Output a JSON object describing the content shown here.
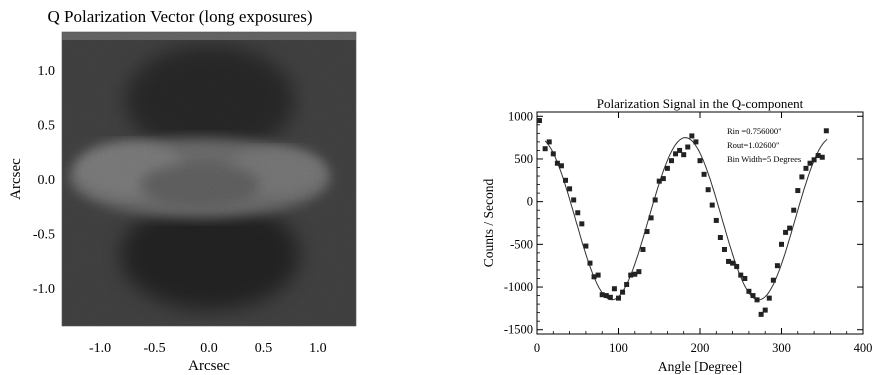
{
  "chart_data": [
    {
      "type": "heatmap",
      "title": "Q Polarization Vector (long exposures)",
      "xlabel": "Arcsec",
      "ylabel": "Arcsec",
      "xlim": [
        -1.35,
        1.35
      ],
      "ylim": [
        -1.35,
        1.35
      ],
      "x_ticks": [
        -1.0,
        -0.5,
        0.0,
        0.5,
        1.0
      ],
      "x_tick_labels": [
        "-1.0",
        "-0.5",
        "0.0",
        "0.5",
        "1.0"
      ],
      "y_ticks": [
        1.0,
        0.5,
        0.0,
        -0.5,
        -1.0
      ],
      "y_tick_labels": [
        "1.0",
        "0.5",
        "0.0",
        "-0.5",
        "-1.0"
      ],
      "colormap": "grayscale",
      "description_features": {
        "bright_band_center_y": 0.05,
        "bright_band_extent_x": [
          -0.95,
          0.95
        ],
        "dark_lobes_y": [
          0.55,
          -0.55
        ]
      }
    },
    {
      "type": "scatter",
      "title": "Polarization Signal in the Q-component",
      "xlabel": "Angle [Degree]",
      "ylabel": "Counts / Second",
      "xlim": [
        0,
        400
      ],
      "ylim": [
        -1550,
        1050
      ],
      "x_ticks": [
        0,
        100,
        200,
        300,
        400
      ],
      "x_tick_labels": [
        "0",
        "100",
        "200",
        "300",
        "400"
      ],
      "y_ticks": [
        1000,
        500,
        0,
        -500,
        -1000,
        -1500
      ],
      "y_tick_labels": [
        "1000",
        "500",
        "0",
        "-500",
        "-1000",
        "-1500"
      ],
      "annotations": [
        "Rin =0.756000\"",
        "Rout=1.02600\"",
        "Bin Width=5 Degrees"
      ],
      "fit_line": {
        "type": "sinusoid",
        "offset": -200,
        "amplitude": 950,
        "period_deg": 180,
        "peak_deg": 182
      },
      "x": [
        3,
        10,
        15,
        20,
        25,
        30,
        35,
        40,
        45,
        50,
        55,
        60,
        65,
        70,
        75,
        80,
        85,
        90,
        95,
        100,
        105,
        110,
        115,
        120,
        125,
        130,
        135,
        140,
        145,
        150,
        155,
        160,
        165,
        170,
        175,
        180,
        185,
        190,
        195,
        200,
        205,
        210,
        215,
        220,
        225,
        230,
        235,
        240,
        245,
        250,
        255,
        260,
        265,
        270,
        275,
        280,
        285,
        290,
        295,
        300,
        305,
        310,
        315,
        320,
        325,
        330,
        335,
        340,
        345,
        350,
        355
      ],
      "y": [
        950,
        620,
        700,
        560,
        450,
        420,
        250,
        150,
        20,
        -130,
        -260,
        -520,
        -720,
        -880,
        -860,
        -1090,
        -1100,
        -1120,
        -1020,
        -1130,
        -1060,
        -970,
        -860,
        -850,
        -820,
        -560,
        -350,
        -190,
        20,
        240,
        270,
        390,
        480,
        560,
        600,
        550,
        640,
        770,
        700,
        480,
        320,
        140,
        -40,
        -220,
        -420,
        -560,
        -700,
        -720,
        -760,
        -860,
        -900,
        -1050,
        -1100,
        -1150,
        -1320,
        -1270,
        -1130,
        -920,
        -750,
        -500,
        -360,
        -310,
        -100,
        130,
        290,
        390,
        450,
        490,
        540,
        520,
        830
      ]
    }
  ]
}
